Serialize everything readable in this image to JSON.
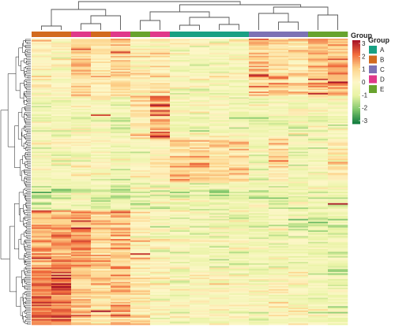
{
  "chart_data": {
    "type": "heatmap",
    "title": "",
    "xlabel": "",
    "ylabel": "",
    "columns": [
      {
        "group": "B"
      },
      {
        "group": "B"
      },
      {
        "group": "D"
      },
      {
        "group": "B"
      },
      {
        "group": "D"
      },
      {
        "group": "E"
      },
      {
        "group": "D"
      },
      {
        "group": "A"
      },
      {
        "group": "A"
      },
      {
        "group": "A"
      },
      {
        "group": "A"
      },
      {
        "group": "C"
      },
      {
        "group": "C"
      },
      {
        "group": "C"
      },
      {
        "group": "E"
      },
      {
        "group": "E"
      }
    ],
    "row_count": 200,
    "row_blocks": [
      {
        "rows": [
          0,
          40
        ],
        "means": [
          0.0,
          0.0,
          0.9,
          0.3,
          0.8,
          0.2,
          0.4,
          -0.3,
          -0.3,
          -0.2,
          -0.3,
          1.0,
          0.7,
          0.6,
          1.1,
          1.3
        ]
      },
      {
        "rows": [
          40,
          70
        ],
        "means": [
          -0.5,
          -0.4,
          -0.3,
          -0.2,
          -0.6,
          0.5,
          1.5,
          -0.4,
          -0.2,
          -0.3,
          -0.5,
          -0.6,
          -0.4,
          -0.5,
          -0.3,
          -0.4
        ]
      },
      {
        "rows": [
          70,
          100
        ],
        "means": [
          -0.4,
          -0.5,
          -0.2,
          -0.4,
          -0.5,
          -0.2,
          0.2,
          0.8,
          0.9,
          0.7,
          0.6,
          -0.6,
          0.5,
          -0.5,
          -0.4,
          0.3
        ]
      },
      {
        "rows": [
          100,
          120
        ],
        "means": [
          -1.0,
          -0.9,
          -0.8,
          -0.9,
          -1.0,
          -0.8,
          -0.7,
          -0.6,
          -0.7,
          -0.8,
          -0.7,
          -0.8,
          -0.9,
          -0.6,
          -0.5,
          -0.7
        ]
      },
      {
        "rows": [
          120,
          160
        ],
        "means": [
          1.3,
          1.3,
          1.6,
          0.8,
          1.1,
          0.3,
          -0.3,
          -0.5,
          -0.6,
          -0.6,
          -0.6,
          -0.7,
          -0.5,
          -0.6,
          -0.8,
          -0.9
        ]
      },
      {
        "rows": [
          160,
          200
        ],
        "means": [
          1.9,
          1.9,
          0.9,
          0.4,
          0.9,
          0.3,
          -0.2,
          -0.3,
          -0.2,
          -0.2,
          -0.2,
          -0.4,
          -0.1,
          -0.3,
          -0.6,
          -0.7
        ]
      }
    ],
    "hotspots": [
      {
        "row": 7,
        "col": 2,
        "value": 2.2
      },
      {
        "row": 9,
        "col": 4,
        "value": 2.4
      },
      {
        "row": 25,
        "col": 11,
        "value": 2.8
      },
      {
        "row": 27,
        "col": 12,
        "value": 2.1
      },
      {
        "row": 28,
        "col": 14,
        "value": 2.5
      },
      {
        "row": 30,
        "col": 15,
        "value": 3.0
      },
      {
        "row": 38,
        "col": 14,
        "value": 2.7
      },
      {
        "row": 46,
        "col": 6,
        "value": 3.0
      },
      {
        "row": 53,
        "col": 3,
        "value": 2.4
      },
      {
        "row": 85,
        "col": 12,
        "value": 2.0
      },
      {
        "row": 115,
        "col": 15,
        "value": 2.9
      },
      {
        "row": 150,
        "col": 5,
        "value": 2.6
      },
      {
        "row": 190,
        "col": 3,
        "value": 3.0
      },
      {
        "row": 193,
        "col": 4,
        "value": 2.4
      }
    ],
    "color_scale": {
      "range": [
        -3,
        3
      ],
      "stops": [
        "#0e7a3e",
        "#7fc66b",
        "#e8f3a4",
        "#fdf7c8",
        "#fdd38a",
        "#f06a3c",
        "#a50f26"
      ]
    }
  },
  "legends": {
    "colorbar": {
      "title": "Group",
      "ticks": [
        "3",
        "2",
        "1",
        "0",
        "-1",
        "-2",
        "-3"
      ]
    },
    "group": {
      "title": "Group",
      "items": [
        {
          "label": "A",
          "color": "#19a083"
        },
        {
          "label": "B",
          "color": "#d26a1e"
        },
        {
          "label": "C",
          "color": "#7d72b4"
        },
        {
          "label": "D",
          "color": "#e0388a"
        },
        {
          "label": "E",
          "color": "#68a32e"
        }
      ]
    }
  }
}
